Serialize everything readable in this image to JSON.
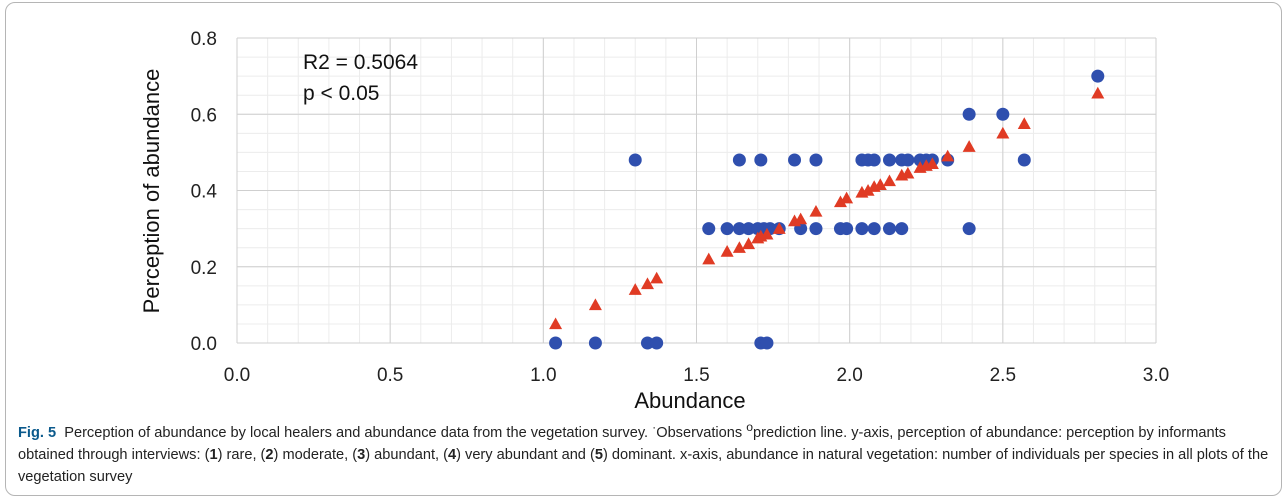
{
  "chart_data": {
    "type": "scatter",
    "xlabel": "Abundance",
    "ylabel": "Perception of abundance",
    "xlim": [
      0,
      3
    ],
    "ylim": [
      0,
      0.8
    ],
    "xticks": [
      "0.0",
      "0.5",
      "1.0",
      "1.5",
      "2.0",
      "2.5",
      "3.0"
    ],
    "yticks": [
      "0.0",
      "0.2",
      "0.4",
      "0.6",
      "0.8"
    ],
    "grid": true,
    "annotations": [
      "R2 = 0.5064",
      "p < 0.05"
    ],
    "series": [
      {
        "marker": "circle",
        "color": "#2f4fae",
        "points": [
          [
            1.04,
            0.0
          ],
          [
            1.17,
            0.0
          ],
          [
            1.34,
            0.0
          ],
          [
            1.37,
            0.0
          ],
          [
            1.71,
            0.0
          ],
          [
            1.73,
            0.0
          ],
          [
            1.3,
            0.48
          ],
          [
            1.64,
            0.48
          ],
          [
            1.71,
            0.48
          ],
          [
            1.82,
            0.48
          ],
          [
            1.89,
            0.48
          ],
          [
            2.04,
            0.48
          ],
          [
            2.06,
            0.48
          ],
          [
            2.08,
            0.48
          ],
          [
            2.13,
            0.48
          ],
          [
            2.17,
            0.48
          ],
          [
            2.19,
            0.48
          ],
          [
            2.23,
            0.48
          ],
          [
            2.25,
            0.48
          ],
          [
            2.27,
            0.48
          ],
          [
            2.32,
            0.48
          ],
          [
            2.57,
            0.48
          ],
          [
            1.54,
            0.3
          ],
          [
            1.6,
            0.3
          ],
          [
            1.64,
            0.3
          ],
          [
            1.67,
            0.3
          ],
          [
            1.7,
            0.3
          ],
          [
            1.72,
            0.3
          ],
          [
            1.74,
            0.3
          ],
          [
            1.77,
            0.3
          ],
          [
            1.84,
            0.3
          ],
          [
            1.89,
            0.3
          ],
          [
            1.97,
            0.3
          ],
          [
            1.99,
            0.3
          ],
          [
            2.04,
            0.3
          ],
          [
            2.08,
            0.3
          ],
          [
            2.13,
            0.3
          ],
          [
            2.17,
            0.3
          ],
          [
            2.39,
            0.3
          ],
          [
            2.39,
            0.6
          ],
          [
            2.5,
            0.6
          ],
          [
            2.81,
            0.7
          ]
        ]
      },
      {
        "marker": "triangle",
        "color": "#e03b24",
        "points": [
          [
            1.04,
            0.05
          ],
          [
            1.17,
            0.1
          ],
          [
            1.3,
            0.14
          ],
          [
            1.34,
            0.155
          ],
          [
            1.37,
            0.17
          ],
          [
            1.54,
            0.22
          ],
          [
            1.6,
            0.24
          ],
          [
            1.64,
            0.25
          ],
          [
            1.67,
            0.26
          ],
          [
            1.7,
            0.275
          ],
          [
            1.71,
            0.28
          ],
          [
            1.73,
            0.285
          ],
          [
            1.77,
            0.3
          ],
          [
            1.82,
            0.32
          ],
          [
            1.84,
            0.325
          ],
          [
            1.89,
            0.345
          ],
          [
            1.97,
            0.37
          ],
          [
            1.99,
            0.38
          ],
          [
            2.04,
            0.395
          ],
          [
            2.06,
            0.4
          ],
          [
            2.08,
            0.41
          ],
          [
            2.1,
            0.415
          ],
          [
            2.13,
            0.425
          ],
          [
            2.17,
            0.44
          ],
          [
            2.19,
            0.445
          ],
          [
            2.23,
            0.46
          ],
          [
            2.25,
            0.465
          ],
          [
            2.27,
            0.47
          ],
          [
            2.32,
            0.49
          ],
          [
            2.39,
            0.515
          ],
          [
            2.5,
            0.55
          ],
          [
            2.57,
            0.575
          ],
          [
            2.81,
            0.655
          ]
        ]
      }
    ]
  },
  "caption": {
    "label": "Fig. 5",
    "text_1": "Perception of abundance by local healers and abundance data from the vegetation survey. ",
    "sup_1": "·",
    "text_2": "Observations ",
    "sup_2": "o",
    "text_3": "prediction line. y-axis, perception of abundance: perception by informants obtained through interviews: (",
    "n1": "1",
    "t1": ") rare, (",
    "n2": "2",
    "t2": ") moderate, (",
    "n3": "3",
    "t3": ") abundant, (",
    "n4": "4",
    "t4": ") very abundant and (",
    "n5": "5",
    "t5": ") dominant. x-axis, abundance in natural vegetation: number of individuals per species in all plots of the vegetation survey"
  }
}
